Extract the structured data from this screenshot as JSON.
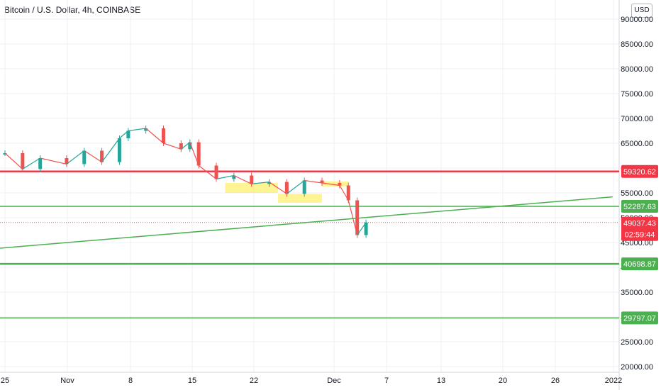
{
  "header": {
    "title": "Bitcoin / U.S. Dollar, 4h, COINBASE",
    "currency": "USD"
  },
  "colors": {
    "up": "#26a69a",
    "down": "#ef5350",
    "red_level": "#f23645",
    "green_level": "#4caf50",
    "highlight": "#ffeb3b",
    "grid": "#eef0f3",
    "text": "#131722"
  },
  "chart_data": {
    "type": "line",
    "title": "Bitcoin / U.S. Dollar, 4h, COINBASE",
    "y_axis_unit": "USD",
    "ylim": [
      20000,
      91000
    ],
    "y_ticks": [
      "20000.00",
      "25000.00",
      "30000.00",
      "35000.00",
      "40000.00",
      "45000.00",
      "50000.00",
      "55000.00",
      "60000.00",
      "65000.00",
      "70000.00",
      "75000.00",
      "80000.00",
      "85000.00",
      "90000.00"
    ],
    "x_ticks": [
      "25",
      "Nov",
      "8",
      "15",
      "22",
      "Dec",
      "7",
      "13",
      "20",
      "26",
      "2022"
    ],
    "grid": true,
    "price_series": {
      "name": "",
      "x": [
        "Oct 25",
        "Oct 27",
        "Oct 29",
        "Nov 1",
        "Nov 3",
        "Nov 5",
        "Nov 7",
        "Nov 8",
        "Nov 10",
        "Nov 12",
        "Nov 14",
        "Nov 15",
        "Nov 16",
        "Nov 18",
        "Nov 20",
        "Nov 22",
        "Nov 24",
        "Nov 26",
        "Nov 28",
        "Nov 30",
        "Dec 2",
        "Dec 3",
        "Dec 4",
        "Dec 5"
      ],
      "values": [
        63000,
        59800,
        62000,
        60800,
        63500,
        61200,
        66000,
        67500,
        68000,
        65000,
        63800,
        65200,
        60500,
        57800,
        58500,
        56800,
        57200,
        54800,
        57500,
        57000,
        56500,
        53500,
        46500,
        49037
      ]
    },
    "horizontal_levels": [
      {
        "value": 59320.62,
        "label": "59320.62",
        "color": "#f23645"
      },
      {
        "value": 52287.63,
        "label": "52287.63",
        "color": "#4caf50"
      },
      {
        "value": 40698.87,
        "label": "40698.87",
        "color": "#4caf50"
      },
      {
        "value": 29797.07,
        "label": "29797.07",
        "color": "#4caf50"
      }
    ],
    "trendline": {
      "color": "#4caf50",
      "start": {
        "x": "Oct 22",
        "y": 43500
      },
      "end": {
        "x": "Jan 2",
        "y": 54200
      }
    },
    "current_price": {
      "label": "49037.43",
      "countdown": "02:59:44",
      "color": "#f23645"
    },
    "highlight_zones": [
      {
        "x0": "Nov 19",
        "x1": "Nov 25",
        "y0": 55000,
        "y1": 57000
      },
      {
        "x0": "Nov 25",
        "x1": "Nov 30",
        "y0": 53000,
        "y1": 54800
      },
      {
        "x0": "Nov 30",
        "x1": "Dec 3",
        "y0": 56300,
        "y1": 57300
      }
    ]
  }
}
